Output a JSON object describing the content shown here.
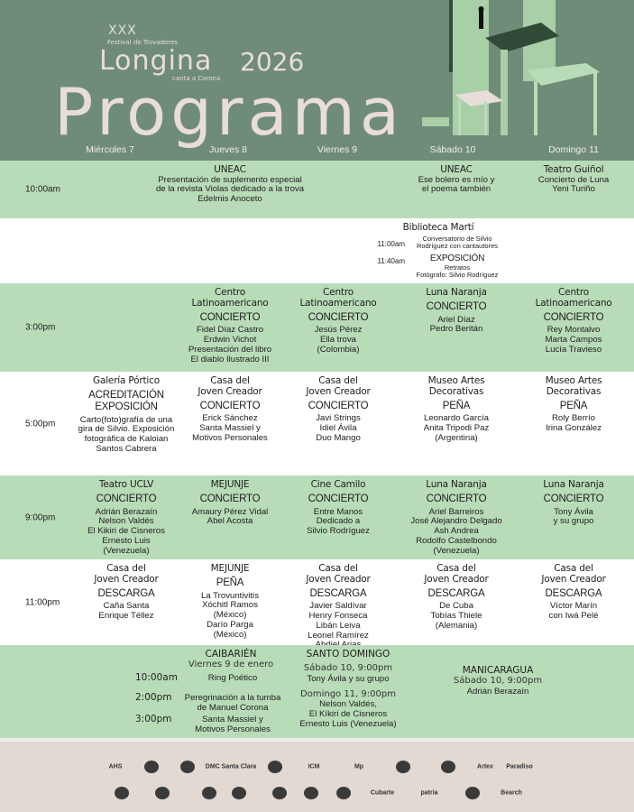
{
  "header": {
    "xxx": "XXX",
    "festival": "Festival de Trovadores",
    "longina": "Longina",
    "canta": "canta a Corona",
    "year": "2026",
    "programa": "Programa"
  },
  "colors": {
    "header": "#6f8c78",
    "green_row": "#b9dcb8",
    "footer": "#e2d9d2",
    "title": "#e8ddd8"
  },
  "days": [
    "Miércoles 7",
    "Jueves 8",
    "Viernes 9",
    "Sábado 10",
    "Domingo 11"
  ],
  "rows": [
    {
      "time": "10:00am",
      "shade": "green",
      "cells": [
        {
          "col": 1,
          "venue": [
            "UNEAC"
          ],
          "details": [
            "Presentación de suplemento especial",
            "de la revista Violas dedicado a la trova",
            "Edelmis Anoceto"
          ]
        },
        {
          "col": 3,
          "venue": [
            "UNEAC"
          ],
          "details": [
            "Ese bolero es mío y",
            "el poema también"
          ]
        },
        {
          "col": 4,
          "venue": [
            "Teatro Guiñol"
          ],
          "details": [
            "Concierto de Luna",
            "Yeni Turiño"
          ]
        }
      ]
    },
    {
      "time": "",
      "shade": "white",
      "cells": [
        {
          "col": 3,
          "venue": [
            "Biblioteca Martí"
          ],
          "subs": [
            {
              "time": "11:00am",
              "event": "",
              "details": [
                "Conversatorio de Silvio",
                "Rodríguez con cantautores"
              ]
            },
            {
              "time": "11:40am",
              "event": "EXPOSICIÓN",
              "details": [
                "Retratos",
                "Fotógrafo: Silvio Rodríguez"
              ]
            }
          ]
        }
      ]
    },
    {
      "time": "3:00pm",
      "shade": "green",
      "cells": [
        {
          "col": 1,
          "venue": [
            "Centro",
            "Latinoamericano"
          ],
          "event": [
            "CONCIERTO"
          ],
          "details": [
            "Fidel Díaz Castro",
            "Erdwin Vichot",
            "Presentación del libro",
            "El diablo Ilustrado III"
          ]
        },
        {
          "col": 2,
          "venue": [
            "Centro",
            "Latinoamericano"
          ],
          "event": [
            "CONCIERTO"
          ],
          "details": [
            "Jesús Pérez",
            "Ella trova",
            "(Colombia)"
          ]
        },
        {
          "col": 3,
          "venue": [
            "Luna Naranja"
          ],
          "event": [
            "CONCIERTO"
          ],
          "details": [
            "Ariel Díaz",
            "Pedro Beritán"
          ]
        },
        {
          "col": 4,
          "venue": [
            "Centro",
            "Latinoamericano"
          ],
          "event": [
            "CONCIERTO"
          ],
          "details": [
            "Rey Montalvo",
            "Marta Campos",
            "Lucía Travieso"
          ]
        }
      ]
    },
    {
      "time": "5:00pm",
      "shade": "white",
      "cells": [
        {
          "col": 0,
          "venue": [
            "Galería Pórtico"
          ],
          "event": [
            "ACREDITACIÓN",
            "EXPOSICIÓN"
          ],
          "details": [
            "Carto(foto)grafía de una",
            "gira de Silvio. Exposición",
            "fotográfica de Kaloian",
            "Santos Cabrera"
          ]
        },
        {
          "col": 1,
          "venue": [
            "Casa del",
            "Joven Creador"
          ],
          "event": [
            "CONCIERTO"
          ],
          "details": [
            "Erick Sánchez",
            "Santa Massiel y",
            "Motivos Personales"
          ]
        },
        {
          "col": 2,
          "venue": [
            "Casa del",
            "Joven Creador"
          ],
          "event": [
            "CONCIERTO"
          ],
          "details": [
            "Javi Strings",
            "Idiel Ávila",
            "Duo Mango"
          ]
        },
        {
          "col": 3,
          "venue": [
            "Museo Artes",
            "Decorativas"
          ],
          "event": [
            "PEÑA"
          ],
          "details": [
            "Leonardo García",
            "Anita Tripodi Paz",
            "(Argentina)"
          ]
        },
        {
          "col": 4,
          "venue": [
            "Museo Artes",
            "Decorativas"
          ],
          "event": [
            "PEÑA"
          ],
          "details": [
            "Roly Berrío",
            "Irina González"
          ]
        }
      ]
    },
    {
      "time": "9:00pm",
      "shade": "green",
      "cells": [
        {
          "col": 0,
          "venue": [
            "Teatro UCLV"
          ],
          "event": [
            "CONCIERTO"
          ],
          "details": [
            "Adrián Berazaín",
            "Nelson Valdés",
            "El Kikiri de Cisneros",
            "Ernesto Luis",
            "(Venezuela)"
          ]
        },
        {
          "col": 1,
          "venue": [
            "MEJUNJE"
          ],
          "event": [
            "CONCIERTO"
          ],
          "details": [
            "Amaury Pérez Vidal",
            "Abel Acosta"
          ]
        },
        {
          "col": 2,
          "venue": [
            "Cine Camilo"
          ],
          "event": [
            "CONCIERTO"
          ],
          "details": [
            "Entre Manos",
            "Dedicado a",
            "Silvio Rodríguez"
          ]
        },
        {
          "col": 3,
          "venue": [
            "Luna Naranja"
          ],
          "event": [
            "CONCIERTO"
          ],
          "details": [
            "Ariel Barreiros",
            "José Alejandro Delgado",
            "Ash Andrea",
            "Rodolfo Castelbondo",
            "(Venezuela)"
          ]
        },
        {
          "col": 4,
          "venue": [
            "Luna Naranja"
          ],
          "event": [
            "CONCIERTO"
          ],
          "details": [
            "Tony Ávila",
            "y su grupo"
          ]
        }
      ]
    },
    {
      "time": "11:00pm",
      "shade": "white",
      "cells": [
        {
          "col": 0,
          "venue": [
            "Casa del",
            "Joven Creador"
          ],
          "event": [
            "DESCARGA"
          ],
          "details": [
            "Caña Santa",
            "Enrique Téllez"
          ]
        },
        {
          "col": 1,
          "venue": [
            "MEJUNJE"
          ],
          "event": [
            "PEÑA"
          ],
          "details": [
            "La Trovuntivitis",
            "Xóchitl Ramos",
            "(México)",
            "Darío Parga",
            "(México)"
          ]
        },
        {
          "col": 2,
          "venue": [
            "Casa del",
            "Joven Creador"
          ],
          "event": [
            "DESCARGA"
          ],
          "details": [
            "Javier Saldívar",
            "Henry Fonseca",
            "Libán Leiva",
            "Leonel Ramírez",
            "Abdiel Arias"
          ]
        },
        {
          "col": 3,
          "venue": [
            "Casa del",
            "Joven Creador"
          ],
          "event": [
            "DESCARGA"
          ],
          "details": [
            "De Cuba",
            "Tobías Thiele",
            "(Alemania)"
          ]
        },
        {
          "col": 4,
          "venue": [
            "Casa del",
            "Joven Creador"
          ],
          "event": [
            "DESCARGA"
          ],
          "details": [
            "Víctor Marín",
            "con Iwá Pelé"
          ]
        }
      ]
    }
  ],
  "regional": {
    "caibarien": {
      "title": "CAIBARIÉN",
      "date": "Viernes 9 de enero",
      "items": [
        {
          "time": "10:00am",
          "lines": [
            "Ring Poético"
          ]
        },
        {
          "time": "2:00pm",
          "lines": [
            "Peregrinación a la tumba",
            "de Manuel Corona"
          ]
        },
        {
          "time": "3:00pm",
          "lines": [
            "Santa Massiel y",
            "Motivos Personales"
          ]
        }
      ]
    },
    "santo_domingo": {
      "title": "SANTO DOMINGO",
      "date1": "Sábado 10, 9:00pm",
      "lines1": [
        "Tony Ávila y su grupo"
      ],
      "date2": "Domingo 11, 9:00pm",
      "lines2": [
        "Nelson Valdés,",
        "El Kíkiri de Cisneros",
        "Ernesto Luis (Venezuela)"
      ]
    },
    "manicaragua": {
      "title": "MANICARAGUA",
      "date": "Sábado 10, 9:00pm",
      "lines": [
        "Adrián Berazaín"
      ]
    }
  },
  "sponsors": [
    "AHS",
    "",
    "",
    "DMC Santa Clara",
    "",
    "ICM",
    "Mp",
    "",
    "",
    "Artex",
    "Paradiso",
    "",
    "",
    "",
    "",
    "",
    "",
    "",
    "Cubarte",
    "patria",
    "",
    "Bearch"
  ]
}
